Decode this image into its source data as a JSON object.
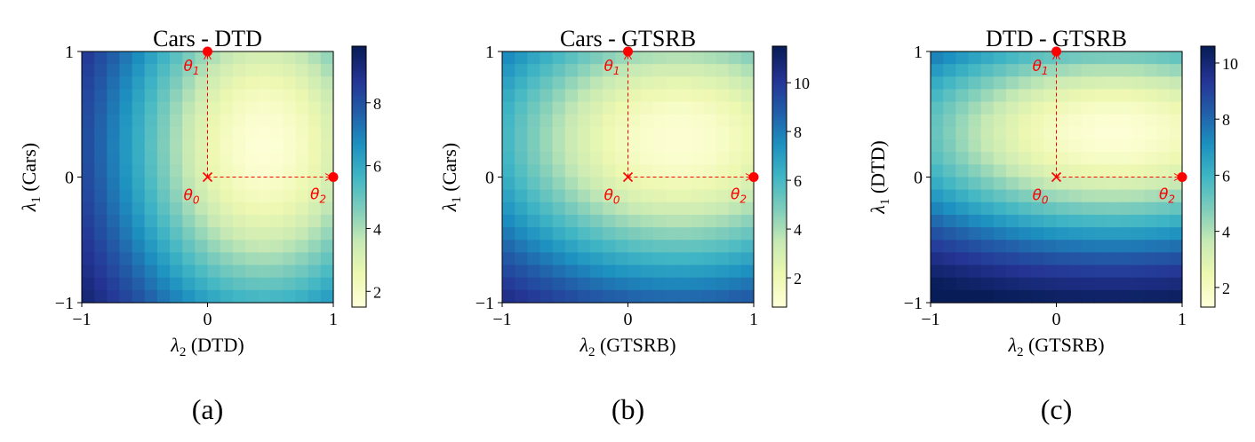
{
  "chart_data": [
    {
      "type": "heatmap",
      "title": "Cars - DTD",
      "panel_label": "(a)",
      "xlabel_symbol": "λ",
      "xlabel_sub": "2",
      "xlabel_text": " (DTD)",
      "ylabel_symbol": "λ",
      "ylabel_sub": "1",
      "ylabel_text": " (Cars)",
      "xlim": [
        -1,
        1
      ],
      "ylim": [
        -1,
        1
      ],
      "xticks": [
        "−1",
        "0",
        "1"
      ],
      "yticks": [
        "−1",
        "0",
        "1"
      ],
      "grid": false,
      "colormap": "YlGnBu",
      "color_range": [
        1.5,
        9.8
      ],
      "colorbar_ticks": [
        2,
        4,
        6,
        8
      ],
      "colorbar_labels": [
        "2",
        "4",
        "6",
        "8"
      ],
      "grid_size": 20,
      "field": {
        "x0": 0.45,
        "y0": 0.25,
        "pull_x": 1.6,
        "pull_y": 2.6,
        "amp": 9.2,
        "base": 1.6
      },
      "markers": [
        {
          "label_base": "θ",
          "label_sub": "0",
          "x": 0,
          "y": 0,
          "kind": "cross"
        },
        {
          "label_base": "θ",
          "label_sub": "1",
          "x": 0,
          "y": 1,
          "kind": "dot"
        },
        {
          "label_base": "θ",
          "label_sub": "2",
          "x": 1,
          "y": 0,
          "kind": "dot"
        }
      ]
    },
    {
      "type": "heatmap",
      "title": "Cars - GTSRB",
      "panel_label": "(b)",
      "xlabel_symbol": "λ",
      "xlabel_sub": "2",
      "xlabel_text": " (GTSRB)",
      "ylabel_symbol": "λ",
      "ylabel_sub": "1",
      "ylabel_text": " (Cars)",
      "xlim": [
        -1,
        1
      ],
      "ylim": [
        -1,
        1
      ],
      "xticks": [
        "−1",
        "0",
        "1"
      ],
      "yticks": [
        "−1",
        "0",
        "1"
      ],
      "grid": false,
      "colormap": "YlGnBu",
      "color_range": [
        0.8,
        11.5
      ],
      "colorbar_ticks": [
        2,
        4,
        6,
        8,
        10
      ],
      "colorbar_labels": [
        "2",
        "4",
        "6",
        "8",
        "10"
      ],
      "grid_size": 20,
      "field": {
        "x0": 0.4,
        "y0": 0.3,
        "pull_x": 3.4,
        "pull_y": 1.6,
        "amp": 12.0,
        "base": 1.0
      },
      "markers": [
        {
          "label_base": "θ",
          "label_sub": "0",
          "x": 0,
          "y": 0,
          "kind": "cross"
        },
        {
          "label_base": "θ",
          "label_sub": "1",
          "x": 0,
          "y": 1,
          "kind": "dot"
        },
        {
          "label_base": "θ",
          "label_sub": "2",
          "x": 1,
          "y": 0,
          "kind": "dot"
        }
      ]
    },
    {
      "type": "heatmap",
      "title": "DTD - GTSRB",
      "panel_label": "(c)",
      "xlabel_symbol": "λ",
      "xlabel_sub": "2",
      "xlabel_text": " (GTSRB)",
      "ylabel_symbol": "λ",
      "ylabel_sub": "1",
      "ylabel_text": " (DTD)",
      "xlim": [
        -1,
        1
      ],
      "ylim": [
        -1,
        1
      ],
      "xticks": [
        "−1",
        "0",
        "1"
      ],
      "yticks": [
        "−1",
        "0",
        "1"
      ],
      "grid": false,
      "colormap": "YlGnBu",
      "color_range": [
        1.3,
        10.6
      ],
      "colorbar_ticks": [
        2,
        4,
        6,
        8,
        10
      ],
      "colorbar_labels": [
        "2",
        "4",
        "6",
        "8",
        "10"
      ],
      "grid_size": 20,
      "field": {
        "x0": 0.45,
        "y0": 0.35,
        "pull_x": 4.4,
        "pull_y": 0.9,
        "amp": 10.5,
        "base": 1.4
      },
      "markers": [
        {
          "label_base": "θ",
          "label_sub": "0",
          "x": 0,
          "y": 0,
          "kind": "cross"
        },
        {
          "label_base": "θ",
          "label_sub": "1",
          "x": 0,
          "y": 1,
          "kind": "dot"
        },
        {
          "label_base": "θ",
          "label_sub": "2",
          "x": 1,
          "y": 0,
          "kind": "dot"
        }
      ]
    }
  ],
  "colors": {
    "marker": "#ff0000",
    "axis": "#000000",
    "colormap_stops": [
      "#ffffd9",
      "#edf8b1",
      "#c7e9b4",
      "#7fcdbb",
      "#41b6c4",
      "#1d91c0",
      "#225ea8",
      "#253494",
      "#081d58"
    ]
  }
}
